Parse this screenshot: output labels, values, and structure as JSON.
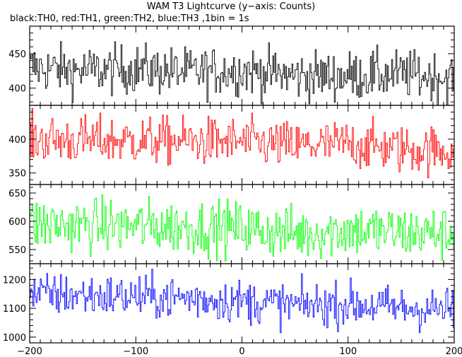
{
  "header": {
    "title": "WAM T3 Lightcurve (y−axis: Counts)",
    "subtitle": "black:TH0, red:TH1, green:TH2, blue:TH3 ,1bin = 1s"
  },
  "chart_data": [
    {
      "type": "line",
      "series": [
        {
          "name": "TH0",
          "color": "#000000",
          "mean": 425,
          "spread": 18,
          "anchors": [
            [
              -200,
              430
            ],
            [
              -150,
              425
            ],
            [
              -100,
              428
            ],
            [
              -50,
              423
            ],
            [
              0,
              426
            ],
            [
              50,
              418
            ],
            [
              100,
              418
            ],
            [
              150,
              420
            ],
            [
              200,
              415
            ]
          ]
        }
      ],
      "ylim": [
        375,
        490
      ],
      "yticks": [
        400,
        450
      ],
      "xlim": [
        -200,
        200
      ]
    },
    {
      "type": "line",
      "series": [
        {
          "name": "TH1",
          "color": "#ff0000",
          "mean": 395,
          "spread": 18,
          "anchors": [
            [
              -200,
              400
            ],
            [
              -150,
              398
            ],
            [
              -100,
              398
            ],
            [
              -50,
              397
            ],
            [
              0,
              396
            ],
            [
              50,
              390
            ],
            [
              100,
              393
            ],
            [
              150,
              385
            ],
            [
              200,
              383
            ]
          ]
        }
      ],
      "ylim": [
        333,
        450
      ],
      "yticks": [
        350,
        400
      ],
      "xlim": [
        -200,
        200
      ]
    },
    {
      "type": "line",
      "series": [
        {
          "name": "TH2",
          "color": "#00ff00",
          "mean": 590,
          "spread": 24,
          "anchors": [
            [
              -200,
              595
            ],
            [
              -150,
              593
            ],
            [
              -100,
              592
            ],
            [
              -50,
              590
            ],
            [
              0,
              588
            ],
            [
              50,
              578
            ],
            [
              100,
              585
            ],
            [
              150,
              580
            ],
            [
              200,
              578
            ]
          ]
        }
      ],
      "ylim": [
        525,
        665
      ],
      "yticks": [
        550,
        600,
        650
      ],
      "xlim": [
        -200,
        200
      ]
    },
    {
      "type": "line",
      "series": [
        {
          "name": "TH3",
          "color": "#0000ff",
          "mean": 1130,
          "spread": 38,
          "anchors": [
            [
              -200,
              1150
            ],
            [
              -150,
              1145
            ],
            [
              -100,
              1140
            ],
            [
              -50,
              1135
            ],
            [
              0,
              1125
            ],
            [
              50,
              1110
            ],
            [
              100,
              1115
            ],
            [
              150,
              1100
            ],
            [
              200,
              1095
            ]
          ]
        }
      ],
      "ylim": [
        980,
        1255
      ],
      "yticks": [
        1000,
        1100,
        1200
      ],
      "xlim": [
        -200,
        200
      ]
    }
  ],
  "xaxis": {
    "ticks": [
      -200,
      -100,
      0,
      100,
      200
    ],
    "tick_labels": [
      "−200",
      "−100",
      "0",
      "100",
      "200"
    ]
  }
}
